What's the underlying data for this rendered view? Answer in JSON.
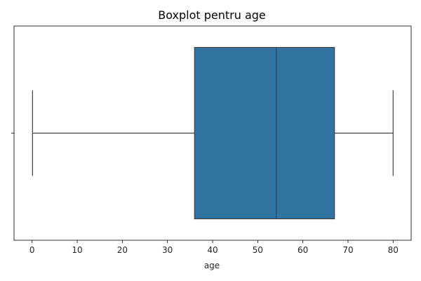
{
  "chart_data": {
    "type": "boxplot",
    "title": "Boxplot pentru age",
    "xlabel": "age",
    "ylabel": "",
    "xlim": [
      -4,
      84
    ],
    "xticks": [
      0,
      10,
      20,
      30,
      40,
      50,
      60,
      70,
      80
    ],
    "grid": false,
    "orientation": "horizontal",
    "box": {
      "whisker_low": 0.1,
      "q1": 36,
      "median": 54.1,
      "q3": 67,
      "whisker_high": 80
    },
    "colors": {
      "box_fill": "#3274a1",
      "line": "#3f3f3f",
      "axes": "#000000"
    }
  }
}
